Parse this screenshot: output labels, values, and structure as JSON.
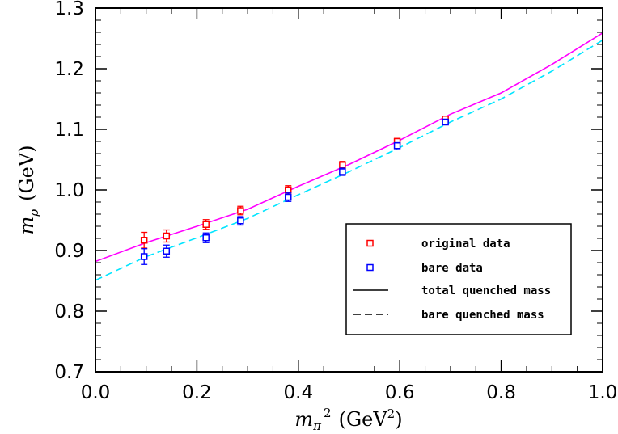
{
  "chart_data": {
    "type": "scatter",
    "xlabel": {
      "main": "m",
      "sub": "π",
      "sup": "2",
      "units_prefix": "(GeV",
      "units_sup": "2",
      "units_suffix": ")"
    },
    "ylabel": {
      "main": "m",
      "sub": "ρ",
      "units": "(GeV)"
    },
    "xlim": [
      0.0,
      1.0
    ],
    "ylim": [
      0.7,
      1.3
    ],
    "x_ticks": [
      {
        "value": 0.0,
        "label": "0.0"
      },
      {
        "value": 0.2,
        "label": "0.2"
      },
      {
        "value": 0.4,
        "label": "0.4"
      },
      {
        "value": 0.6,
        "label": "0.6"
      },
      {
        "value": 0.8,
        "label": "0.8"
      },
      {
        "value": 1.0,
        "label": "1.0"
      }
    ],
    "y_ticks": [
      {
        "value": 0.7,
        "label": "0.7"
      },
      {
        "value": 0.8,
        "label": "0.8"
      },
      {
        "value": 0.9,
        "label": "0.9"
      },
      {
        "value": 1.0,
        "label": "1.0"
      },
      {
        "value": 1.1,
        "label": "1.1"
      },
      {
        "value": 1.2,
        "label": "1.2"
      },
      {
        "value": 1.3,
        "label": "1.3"
      }
    ],
    "grid": false,
    "legend_position": "lower-right",
    "series": [
      {
        "name": "original data",
        "kind": "points",
        "marker": "open-square",
        "color": "#ff0000",
        "points": [
          {
            "x": 0.096,
            "y": 0.917,
            "err": 0.013
          },
          {
            "x": 0.14,
            "y": 0.924,
            "err": 0.01
          },
          {
            "x": 0.218,
            "y": 0.943,
            "err": 0.008
          },
          {
            "x": 0.286,
            "y": 0.966,
            "err": 0.007
          },
          {
            "x": 0.38,
            "y": 1.0,
            "err": 0.007
          },
          {
            "x": 0.487,
            "y": 1.041,
            "err": 0.006
          },
          {
            "x": 0.595,
            "y": 1.08,
            "err": 0.005
          },
          {
            "x": 0.69,
            "y": 1.117,
            "err": 0.004
          }
        ]
      },
      {
        "name": "bare data",
        "kind": "points",
        "marker": "open-square",
        "color": "#0000ff",
        "points": [
          {
            "x": 0.096,
            "y": 0.89,
            "err": 0.013
          },
          {
            "x": 0.14,
            "y": 0.899,
            "err": 0.01
          },
          {
            "x": 0.218,
            "y": 0.921,
            "err": 0.008
          },
          {
            "x": 0.286,
            "y": 0.949,
            "err": 0.007
          },
          {
            "x": 0.38,
            "y": 0.988,
            "err": 0.007
          },
          {
            "x": 0.487,
            "y": 1.03,
            "err": 0.006
          },
          {
            "x": 0.595,
            "y": 1.073,
            "err": 0.005
          },
          {
            "x": 0.69,
            "y": 1.112,
            "err": 0.004
          }
        ]
      },
      {
        "name": "total quenched mass",
        "kind": "line",
        "dash": "solid",
        "color": "#ff00ff",
        "legend_color": "#000000",
        "x": [
          0.0,
          0.1,
          0.2,
          0.3,
          0.4,
          0.5,
          0.6,
          0.7,
          0.8,
          0.9,
          1.0
        ],
        "y": [
          0.882,
          0.913,
          0.94,
          0.968,
          1.006,
          1.042,
          1.082,
          1.125,
          1.16,
          1.207,
          1.259
        ]
      },
      {
        "name": "bare quenched mass",
        "kind": "line",
        "dash": "dashed",
        "color": "#00e5ff",
        "legend_color": "#000000",
        "x": [
          0.0,
          0.1,
          0.2,
          0.3,
          0.4,
          0.5,
          0.6,
          0.7,
          0.8,
          0.9,
          1.0
        ],
        "y": [
          0.851,
          0.89,
          0.921,
          0.953,
          0.992,
          1.03,
          1.07,
          1.112,
          1.15,
          1.196,
          1.247
        ]
      }
    ]
  }
}
